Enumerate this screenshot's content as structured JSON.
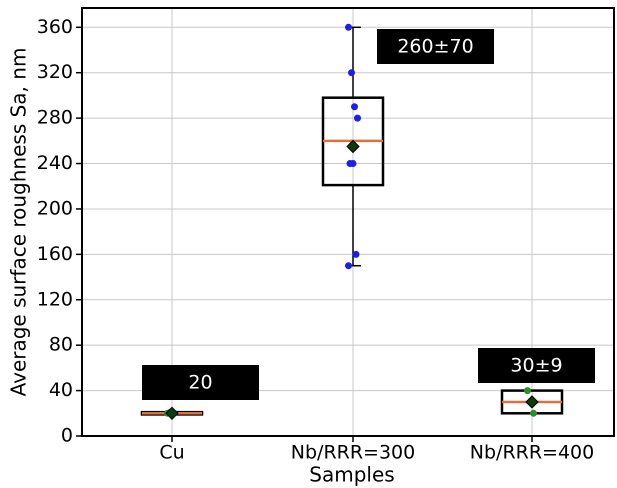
{
  "chart_data": {
    "type": "box",
    "x_label": "Samples",
    "y_label": "Average surface roughness Sa, nm",
    "categories": [
      "Cu",
      "Nb/RRR=300",
      "Nb/RRR=400"
    ],
    "boxes": [
      {
        "whislo": 19,
        "q1": 19,
        "median": 20,
        "q3": 21,
        "whishi": 21,
        "mean": 20,
        "points": [
          20,
          21
        ],
        "point_color": "#2e8b2e",
        "label": "20"
      },
      {
        "whislo": 150,
        "q1": 221,
        "median": 260,
        "q3": 298,
        "whishi": 360,
        "mean": 255,
        "points": [
          360,
          320,
          290,
          280,
          240,
          240,
          160,
          150
        ],
        "point_color": "#1f1fe0",
        "label": "260±70"
      },
      {
        "whislo": 20,
        "q1": 20,
        "median": 30,
        "q3": 40,
        "whishi": 40,
        "mean": 30,
        "points": [
          40,
          30,
          20
        ],
        "point_color": "#2e8b2e",
        "label": "30±9"
      }
    ],
    "median_color": "#e2703a",
    "mean_color": "#0d3b0d",
    "ylim": [
      0,
      377
    ],
    "yticks": [
      0,
      40,
      80,
      120,
      160,
      200,
      240,
      280,
      320,
      360
    ],
    "grid": true
  }
}
